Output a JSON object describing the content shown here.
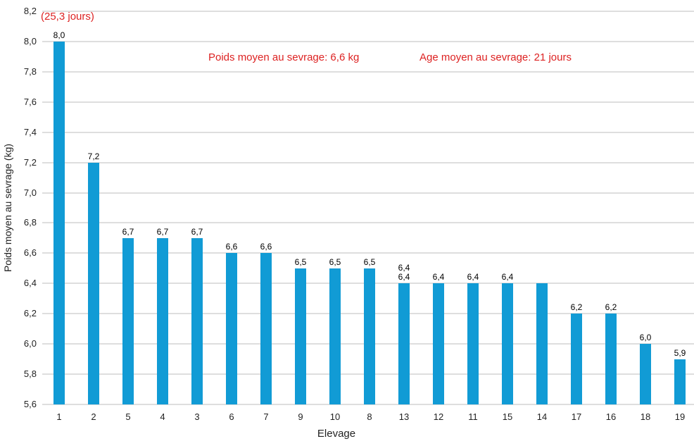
{
  "chart_data": {
    "type": "bar",
    "title": "",
    "xlabel": "Elevage",
    "ylabel": "Poids moyen au sevrage (kg)",
    "categories": [
      "1",
      "2",
      "5",
      "4",
      "3",
      "6",
      "7",
      "9",
      "10",
      "8",
      "13",
      "12",
      "11",
      "15",
      "14",
      "17",
      "16",
      "18",
      "19"
    ],
    "values": [
      8.0,
      7.2,
      6.7,
      6.7,
      6.7,
      6.6,
      6.6,
      6.5,
      6.5,
      6.5,
      6.4,
      6.4,
      6.4,
      6.4,
      6.4,
      6.2,
      6.2,
      6.0,
      5.9
    ],
    "bar_labels": [
      [
        "8,0"
      ],
      [
        "7,2"
      ],
      [
        "6,7"
      ],
      [
        "6,7"
      ],
      [
        "6,7"
      ],
      [
        "6,6"
      ],
      [
        "6,6"
      ],
      [
        "6,5"
      ],
      [
        "6,5"
      ],
      [
        "6,5"
      ],
      [
        "6,4",
        "6,4"
      ],
      [
        "6,4"
      ],
      [
        "6,4"
      ],
      [
        "6,4"
      ],
      [],
      [
        "6,2"
      ],
      [
        "6,2"
      ],
      [
        "6,0"
      ],
      [
        "5,9"
      ]
    ],
    "ylim": [
      5.6,
      8.2
    ],
    "ytick_step": 0.2,
    "ytick_labels": [
      "8,2",
      "8,0",
      "7,8",
      "7,6",
      "7,4",
      "7,2",
      "7,0",
      "6,8",
      "6,6",
      "6,4",
      "6,2",
      "6,0",
      "5,8",
      "5,6"
    ],
    "grid": true,
    "legend": "none",
    "bar_color": "#119bd5",
    "grid_color": "#dedede",
    "annotation_color": "#dd2222",
    "annotations": [
      {
        "text": "(25,3 jours)"
      },
      {
        "text": "Poids moyen au sevrage: 6,6 kg"
      },
      {
        "text": "Age moyen au sevrage: 21 jours"
      }
    ]
  }
}
